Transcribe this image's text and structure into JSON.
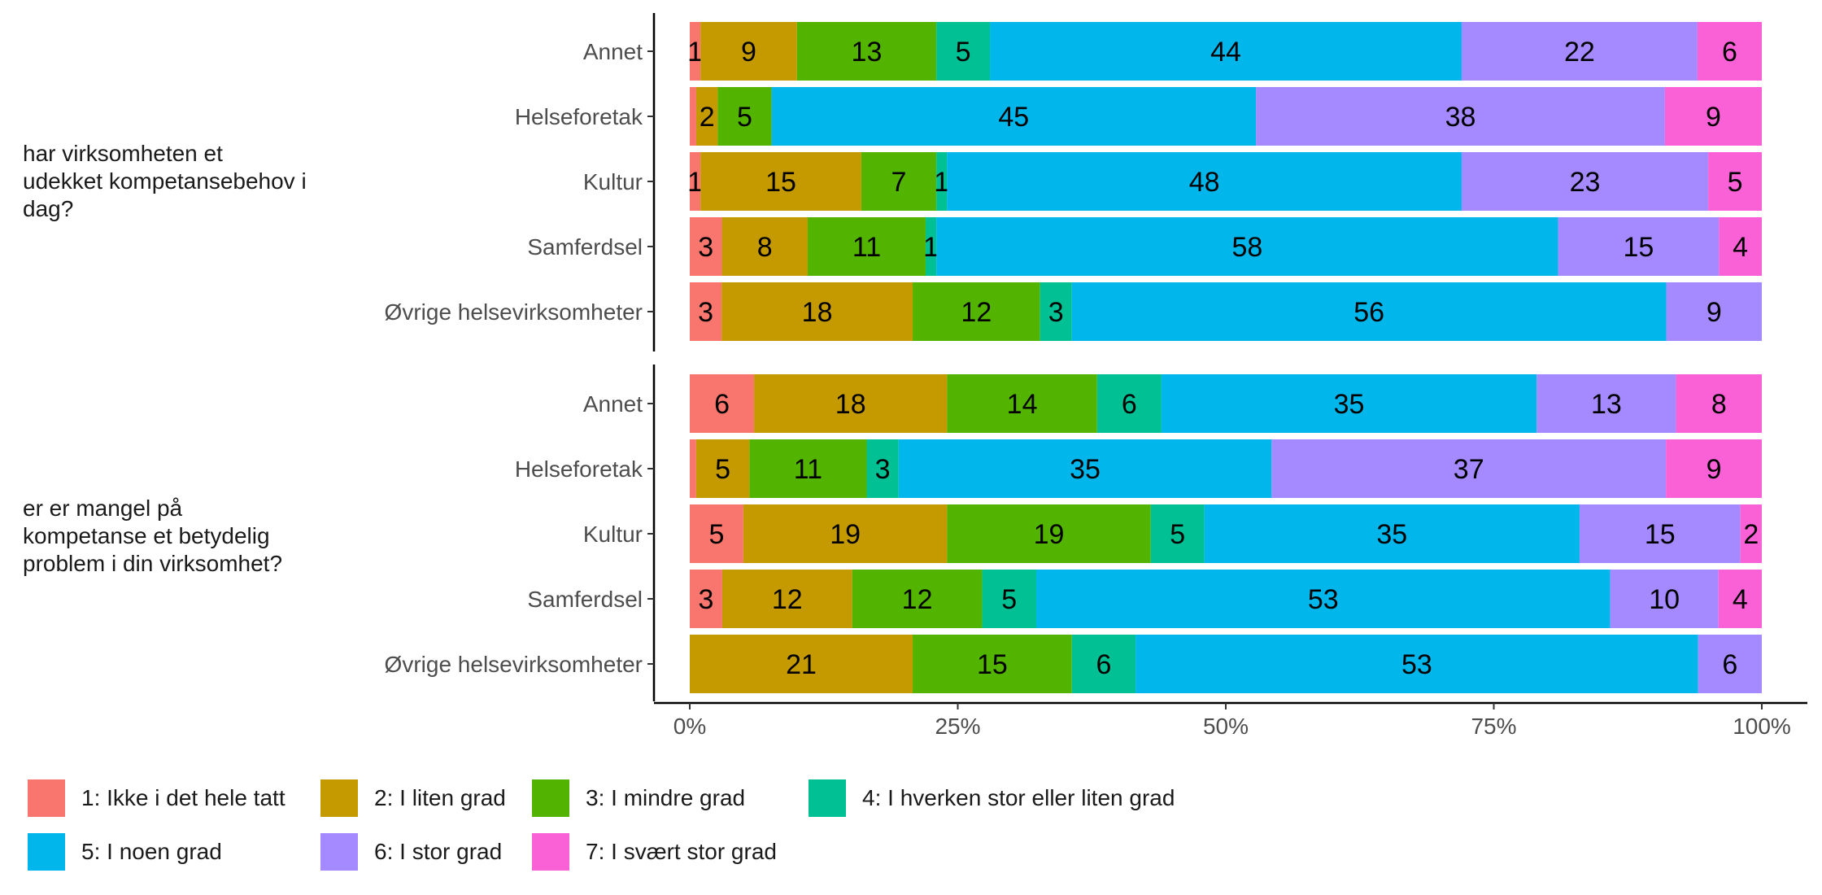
{
  "chart_data": {
    "type": "bar",
    "orientation": "horizontal",
    "stacked": "percent",
    "groups": [
      {
        "label": "har virksomheten et\nudekket kompetansebehov i\ndag?",
        "categories": [
          "Annet",
          "Helseforetak",
          "Kultur",
          "Samferdsel",
          "Øvrige helsevirksomheter"
        ]
      },
      {
        "label": "er er mangel på\nkompetanse et betydelig\nproblem i din virksomhet?",
        "categories": [
          "Annet",
          "Helseforetak",
          "Kultur",
          "Samferdsel",
          "Øvrige helsevirksomheter"
        ]
      }
    ],
    "series": [
      {
        "name": "1: Ikke i det hele tatt",
        "color": "#F8766D",
        "values": [
          [
            1,
            0.6,
            1,
            3,
            3
          ],
          [
            6,
            0.6,
            5,
            3,
            0
          ]
        ]
      },
      {
        "name": "2: I liten grad",
        "color": "#C49A00",
        "values": [
          [
            9,
            2,
            15,
            8,
            18
          ],
          [
            18,
            5,
            19,
            12,
            21
          ]
        ]
      },
      {
        "name": "3: I mindre grad",
        "color": "#53B400",
        "values": [
          [
            13,
            5,
            7,
            11,
            12
          ],
          [
            14,
            11,
            19,
            12,
            15
          ]
        ]
      },
      {
        "name": "4: I hverken stor eller liten grad",
        "color": "#00C094",
        "values": [
          [
            5,
            0,
            1,
            1,
            3
          ],
          [
            6,
            3,
            5,
            5,
            6
          ]
        ]
      },
      {
        "name": "5: I noen grad",
        "color": "#00B6EB",
        "values": [
          [
            44,
            45,
            48,
            58,
            56
          ],
          [
            35,
            35,
            35,
            53,
            53
          ]
        ]
      },
      {
        "name": "6: I stor grad",
        "color": "#A58AFF",
        "values": [
          [
            22,
            38,
            23,
            15,
            9
          ],
          [
            13,
            37,
            15,
            10,
            6
          ]
        ]
      },
      {
        "name": "7: I svært stor grad",
        "color": "#FB61D7",
        "values": [
          [
            6,
            9,
            5,
            4,
            0
          ],
          [
            8,
            9,
            2,
            4,
            0
          ]
        ]
      }
    ],
    "data_labels": [
      [
        [
          "1",
          "9",
          "13",
          "5",
          "44",
          "22",
          "6"
        ],
        [
          "",
          "2",
          "5",
          "",
          "45",
          "38",
          "9"
        ],
        [
          "1",
          "15",
          "7",
          "1",
          "48",
          "23",
          "5"
        ],
        [
          "3",
          "8",
          "11",
          "1",
          "58",
          "15",
          "4"
        ],
        [
          "3",
          "18",
          "12",
          "3",
          "56",
          "9",
          ""
        ]
      ],
      [
        [
          "6",
          "18",
          "14",
          "6",
          "35",
          "13",
          "8"
        ],
        [
          "",
          "5",
          "11",
          "3",
          "35",
          "37",
          "9"
        ],
        [
          "5",
          "19",
          "19",
          "5",
          "35",
          "15",
          "2"
        ],
        [
          "3",
          "12",
          "12",
          "5",
          "53",
          "10",
          "4"
        ],
        [
          "",
          "21",
          "15",
          "6",
          "53",
          "6",
          ""
        ]
      ]
    ],
    "xticks": [
      "0%",
      "25%",
      "50%",
      "75%",
      "100%"
    ],
    "xlim": [
      0,
      1
    ],
    "grid": false,
    "legend_position": "bottom"
  }
}
